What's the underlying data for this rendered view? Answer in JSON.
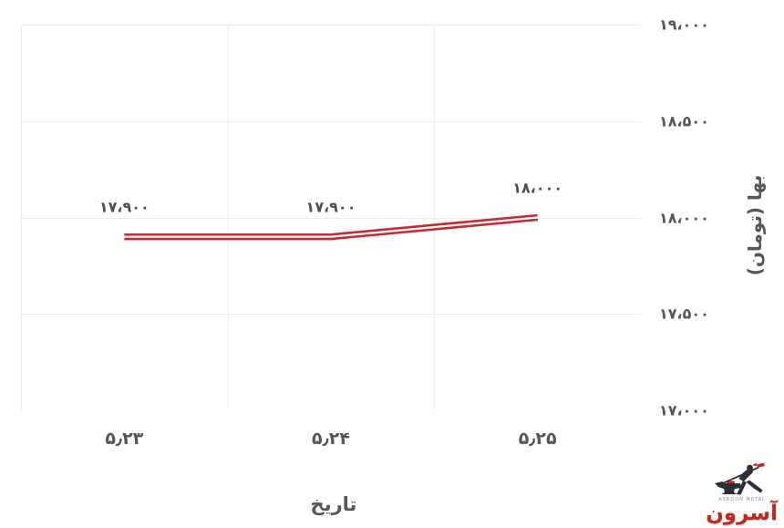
{
  "chart_data": {
    "type": "line",
    "title": "",
    "categories": [
      "۵٫۲۳",
      "۵٫۲۴",
      "۵٫۲۵"
    ],
    "series": [
      {
        "name": "price-toman",
        "values": [
          17900,
          17900,
          18000
        ]
      }
    ],
    "point_labels": [
      "۱۷،۹۰۰",
      "۱۷،۹۰۰",
      "۱۸،۰۰۰"
    ],
    "xlabel": "تاریخ",
    "ylabel": "بها (تومان)",
    "y_ticks": [
      {
        "label": "۱۹،۰۰۰",
        "value": 19000
      },
      {
        "label": "۱۸،۵۰۰",
        "value": 18500
      },
      {
        "label": "۱۸،۰۰۰",
        "value": 18000
      },
      {
        "label": "۱۷،۵۰۰",
        "value": 17500
      },
      {
        "label": "۱۷،۰۰۰",
        "value": 17000
      }
    ],
    "ylim": [
      17000,
      19000
    ],
    "grid": true,
    "legend": false,
    "axis_side": "right",
    "line_style": "double-red-with-white-core"
  },
  "colors": {
    "background": "#ffffff",
    "grid": "#ededed",
    "text": "#55575c",
    "line_red": "#c62a2e",
    "line_core": "#ffffff",
    "logo_red": "#c9251d",
    "logo_dark": "#2e2d3a"
  },
  "logo": {
    "caption": "ASROON METAL",
    "wordmark": "آسرون"
  }
}
